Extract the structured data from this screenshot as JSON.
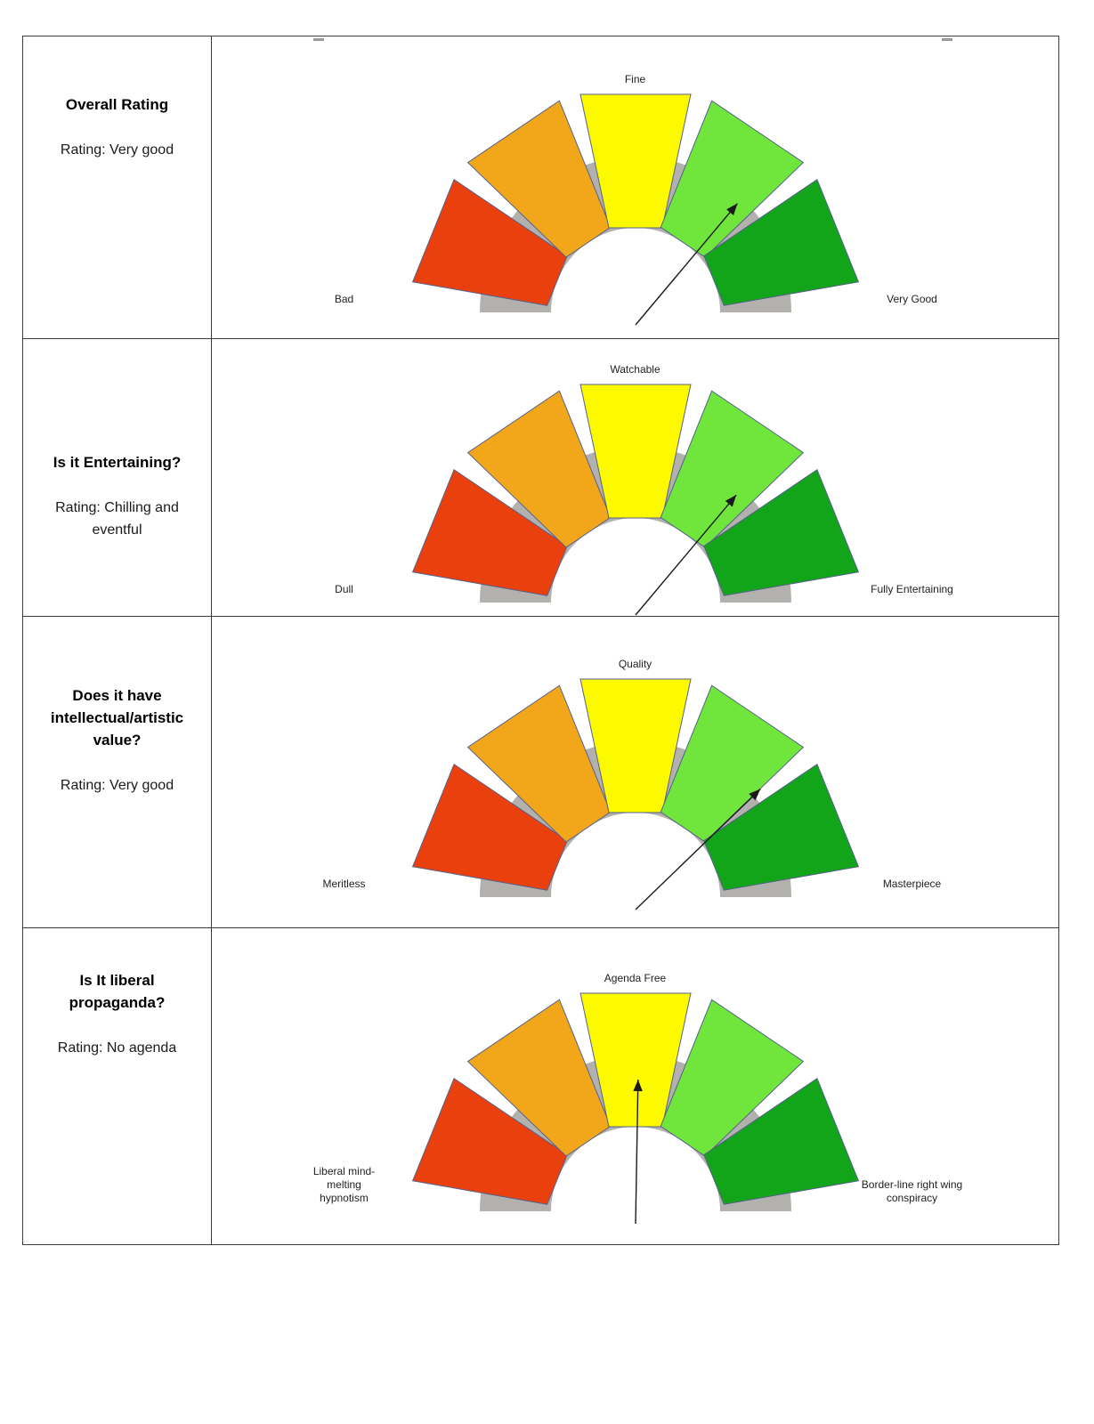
{
  "page": {
    "background": "#ffffff"
  },
  "colors": {
    "red": "#e9400e",
    "orange": "#f2a71b",
    "yellow": "#fdfa00",
    "light_green": "#70e63d",
    "green": "#12a51a",
    "arc_gray": "#b2b1ae",
    "segment_outline": "#55608a",
    "needle": "#1a1a1a",
    "table_border": "#3c3c3c"
  },
  "rows": [
    {
      "title": "Overall Rating",
      "rating": "Rating: Very good",
      "gauge": {
        "top_label": "Fine",
        "left_label": "Bad",
        "right_label": "Very Good",
        "needle_angle_deg": 40,
        "needle_length": 178
      }
    },
    {
      "title": "Is it Entertaining?",
      "rating": "Rating: Chilling and eventful",
      "gauge": {
        "top_label": "Watchable",
        "left_label": "Dull",
        "right_label": "Fully Entertaining",
        "needle_angle_deg": 40,
        "needle_length": 176
      }
    },
    {
      "title": "Does it have intellectual/artistic value?",
      "rating": "Rating: Very good",
      "gauge": {
        "top_label": "Quality",
        "left_label": "Meritless",
        "right_label": "Masterpiece",
        "needle_angle_deg": 46,
        "needle_length": 195
      }
    },
    {
      "title": "Is It liberal propaganda?",
      "rating": "Rating: No agenda",
      "gauge": {
        "top_label": "Agenda Free",
        "left_label": "Liberal mind-melting hypnotism",
        "right_label": "Border-line right wing conspiracy",
        "needle_angle_deg": 1,
        "needle_length": 162
      }
    }
  ],
  "chart_data": [
    {
      "type": "gauge",
      "question": "Overall Rating",
      "rating_value": "Very good",
      "scale_labels": {
        "left": "Bad",
        "center": "Fine",
        "right": "Very Good"
      },
      "segment_colors": [
        "#e9400e",
        "#f2a71b",
        "#fdfa00",
        "#70e63d",
        "#12a51a"
      ],
      "segment_center_angles_deg": [
        -68,
        -34,
        0,
        34,
        68
      ],
      "needle_angle_deg": 40,
      "needle_points_to_segment": "light-green (4 of 5)"
    },
    {
      "type": "gauge",
      "question": "Is it Entertaining?",
      "rating_value": "Chilling and eventful",
      "scale_labels": {
        "left": "Dull",
        "center": "Watchable",
        "right": "Fully Entertaining"
      },
      "segment_colors": [
        "#e9400e",
        "#f2a71b",
        "#fdfa00",
        "#70e63d",
        "#12a51a"
      ],
      "segment_center_angles_deg": [
        -68,
        -34,
        0,
        34,
        68
      ],
      "needle_angle_deg": 40,
      "needle_points_to_segment": "light-green (4 of 5)"
    },
    {
      "type": "gauge",
      "question": "Does it have intellectual/artistic value?",
      "rating_value": "Very good",
      "scale_labels": {
        "left": "Meritless",
        "center": "Quality",
        "right": "Masterpiece"
      },
      "segment_colors": [
        "#e9400e",
        "#f2a71b",
        "#fdfa00",
        "#70e63d",
        "#12a51a"
      ],
      "segment_center_angles_deg": [
        -68,
        -34,
        0,
        34,
        68
      ],
      "needle_angle_deg": 46,
      "needle_points_to_segment": "light-green, near green boundary (4 of 5)"
    },
    {
      "type": "gauge",
      "question": "Is It liberal propaganda?",
      "rating_value": "No agenda",
      "scale_labels": {
        "left": "Liberal mind-melting hypnotism",
        "center": "Agenda Free",
        "right": "Border-line right wing conspiracy"
      },
      "segment_colors": [
        "#e9400e",
        "#f2a71b",
        "#fdfa00",
        "#70e63d",
        "#12a51a"
      ],
      "segment_center_angles_deg": [
        -68,
        -34,
        0,
        34,
        68
      ],
      "needle_angle_deg": 1,
      "needle_points_to_segment": "yellow (3 of 5)"
    }
  ]
}
